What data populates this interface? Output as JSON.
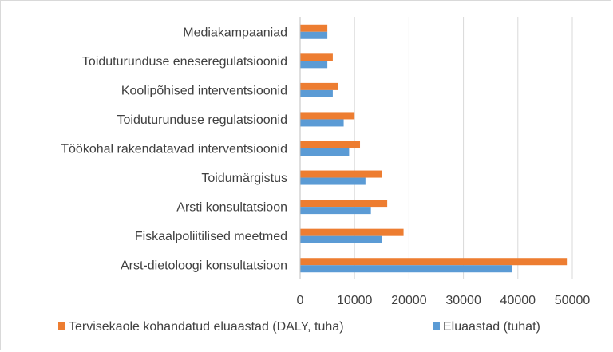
{
  "chart_data": {
    "type": "bar",
    "orientation": "horizontal",
    "categories": [
      "Mediakampaaniad",
      "Toiduturunduse eneseregulatsioonid",
      "Koolipõhised interventsioonid",
      "Toiduturunduse regulatsioonid",
      "Töökohal rakendatavad interventsioonid",
      "Toidumärgistus",
      "Arsti konsultatsioon",
      "Fiskaalpoliitilised meetmed",
      "Arst-dietoloogi konsultatsioon"
    ],
    "series": [
      {
        "name": "Tervisekaole kohandatud eluaastad (DALY, tuha)",
        "color": "#ED7D31",
        "values": [
          5000,
          6000,
          7000,
          10000,
          11000,
          15000,
          16000,
          19000,
          49000
        ]
      },
      {
        "name": "Eluaastad (tuhat)",
        "color": "#5B9BD5",
        "values": [
          5000,
          5000,
          6000,
          8000,
          9000,
          12000,
          13000,
          15000,
          39000
        ]
      }
    ],
    "xlim": [
      0,
      50000
    ],
    "xticks": [
      "0",
      "10000",
      "20000",
      "30000",
      "40000",
      "50000"
    ],
    "grid": true,
    "legend": "bottom"
  }
}
